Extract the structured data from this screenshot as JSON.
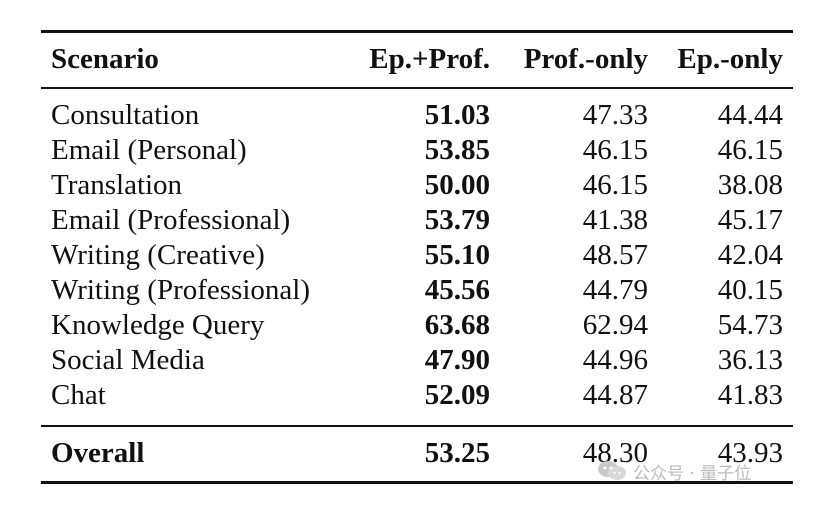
{
  "table": {
    "headers": {
      "scenario": "Scenario",
      "ep_prof": "Ep.+Prof.",
      "prof_only": "Prof.-only",
      "ep_only": "Ep.-only"
    },
    "rows": [
      {
        "scenario": "Consultation",
        "ep_prof": "51.03",
        "prof_only": "47.33",
        "ep_only": "44.44"
      },
      {
        "scenario": "Email (Personal)",
        "ep_prof": "53.85",
        "prof_only": "46.15",
        "ep_only": "46.15"
      },
      {
        "scenario": "Translation",
        "ep_prof": "50.00",
        "prof_only": "46.15",
        "ep_only": "38.08"
      },
      {
        "scenario": "Email (Professional)",
        "ep_prof": "53.79",
        "prof_only": "41.38",
        "ep_only": "45.17"
      },
      {
        "scenario": "Writing (Creative)",
        "ep_prof": "55.10",
        "prof_only": "48.57",
        "ep_only": "42.04"
      },
      {
        "scenario": "Writing (Professional)",
        "ep_prof": "45.56",
        "prof_only": "44.79",
        "ep_only": "40.15"
      },
      {
        "scenario": "Knowledge Query",
        "ep_prof": "63.68",
        "prof_only": "62.94",
        "ep_only": "54.73"
      },
      {
        "scenario": "Social Media",
        "ep_prof": "47.90",
        "prof_only": "44.96",
        "ep_only": "36.13"
      },
      {
        "scenario": "Chat",
        "ep_prof": "52.09",
        "prof_only": "44.87",
        "ep_only": "41.83"
      }
    ],
    "overall": {
      "scenario": "Overall",
      "ep_prof": "53.25",
      "prof_only": "48.30",
      "ep_only": "43.93"
    }
  },
  "watermark": {
    "text": "公众号 · 量子位",
    "icon": "wechat-icon"
  }
}
